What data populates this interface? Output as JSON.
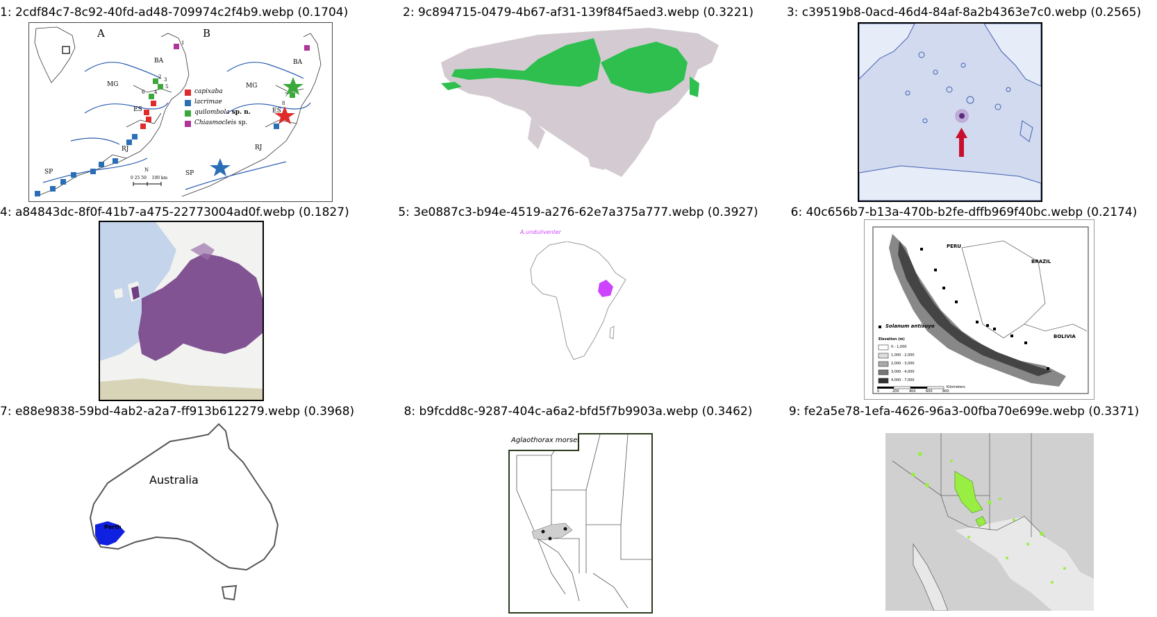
{
  "tiles": [
    {
      "title": "1: 2cdf84c7-8c92-40fd-ad48-709974c2f4b9.webp (0.1704)",
      "panel_labels": [
        "A",
        "B"
      ],
      "region_labels": [
        "BA",
        "MG",
        "ES",
        "RJ",
        "SP",
        "BA",
        "MG",
        "ES",
        "RJ",
        "SP"
      ],
      "site_numbers": [
        "1",
        "2",
        "3",
        "4",
        "5",
        "6",
        "7",
        "8"
      ],
      "legend": [
        {
          "label": "capixaba",
          "color": "#e02b2b"
        },
        {
          "label": "lacrimae",
          "color": "#2a6fb5"
        },
        {
          "label": "quilombola",
          "suffix": "sp. n.",
          "color": "#3aa83a"
        },
        {
          "label": "Chiasmocleis",
          "suffix": "sp.",
          "color": "#b0359a"
        }
      ],
      "scale_text": "0 25 50    100 km",
      "north": "N"
    },
    {
      "title": "2: 9c894715-0479-4b67-af31-139f84f5aed3.webp (0.3221)",
      "range_color": "#2ebf4f",
      "land_color": "#d3cbd1"
    },
    {
      "title": "3: c39519b8-0acd-46d4-84af-8a2b4363e7c0.webp (0.2565)",
      "sea_color": "#d2daf0",
      "marker_color": "#c8102e"
    },
    {
      "title": "4: a84843dc-8f0f-41b7-a475-22773004ad0f.webp (0.1827)",
      "range_color": "#7b4a8d"
    },
    {
      "title": "5: 3e0887c3-b94e-4519-a276-62e7a375a777.webp (0.3927)",
      "species_label": "A.unduliventer",
      "range_color": "#cc44ff"
    },
    {
      "title": "6: 40c656b7-b13a-470b-b2fe-dffb969f40bc.webp (0.2174)",
      "country_labels": [
        "PERU",
        "BRAZIL",
        "BOLIVIA"
      ],
      "legend_species": "Solanum antisuyo",
      "elevation_title": "Elevation (m)",
      "elevation_classes": [
        "0 - 1,000",
        "1,000 - 2,000",
        "2,000 - 3,000",
        "3,000 - 4,000",
        "4,000 - 7,000"
      ],
      "scale_ticks": [
        "0",
        "200",
        "400",
        "600",
        "800"
      ],
      "scale_unit": "Kilometers"
    },
    {
      "title": "7: e88e9838-59bd-4ab2-a2a7-ff913b612279.webp (0.3968)",
      "country_label": "Australia",
      "city_label": "Perth",
      "range_color": "#1020e0"
    },
    {
      "title": "8: b9fcdd8c-9287-404c-a6a2-bfd5f7b9903a.webp (0.3462)",
      "species_label": "Aglaothorax morsei"
    },
    {
      "title": "9: fe2a5e78-1efa-4626-96a3-00fba70e699e.webp (0.3371)",
      "range_color": "#99ee44"
    }
  ]
}
